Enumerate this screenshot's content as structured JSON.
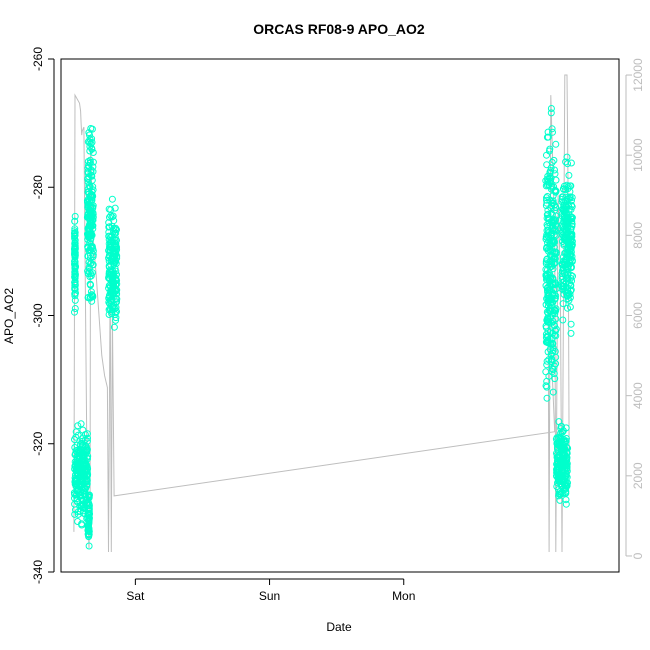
{
  "chart_data": {
    "type": "scatter",
    "title": "ORCAS RF08-9 APO_AO2",
    "xlabel": "Date",
    "ylabel": "APO_AO2",
    "x_ticks": [
      "Sat",
      "Sun",
      "Mon"
    ],
    "x_range_hours": [
      -13.3,
      86.5
    ],
    "ylim": [
      -340,
      -260
    ],
    "y_ticks": [
      -340,
      -320,
      -300,
      -280,
      -260
    ],
    "y2lim": [
      -400,
      12400
    ],
    "y2_ticks": [
      0,
      2000,
      4000,
      6000,
      8000,
      10000,
      12000
    ],
    "grid": false,
    "colors": {
      "points": "#00ffcc",
      "altitude_line": "#bebebe",
      "frame": "#000000",
      "right_axis": "#bdbdbd"
    },
    "series": [
      {
        "kind": "points",
        "clusters": [
          {
            "x_range": [
              -10.9,
              -10.7
            ],
            "y_range": [
              -302,
              -282
            ]
          },
          {
            "x_range": [
              -10.9,
              -8.5
            ],
            "y_range": [
              -334,
              -315
            ]
          },
          {
            "x_range": [
              -8.5,
              -8.2
            ],
            "y_range": [
              -337,
              -326
            ]
          },
          {
            "x_range": [
              -8.6,
              -7.5
            ],
            "y_range": [
              -302,
              -267
            ]
          },
          {
            "x_range": [
              -4.8,
              -3.3
            ],
            "y_range": [
              -307,
              -280
            ]
          },
          {
            "x_range": [
              73.4,
              75.3
            ],
            "y_range": [
              -321,
              -264
            ]
          },
          {
            "x_range": [
              75.3,
              77.3
            ],
            "y_range": [
              -332,
              -314
            ]
          },
          {
            "x_range": [
              76.3,
              78.2
            ],
            "y_range": [
              -305,
              -272
            ]
          }
        ]
      },
      {
        "kind": "line",
        "points": [
          [
            -11.0,
            600
          ],
          [
            -10.8,
            11500
          ],
          [
            -10.0,
            11300
          ],
          [
            -9.8,
            11100
          ],
          [
            -9.7,
            10800
          ],
          [
            -9.6,
            10500
          ],
          [
            -9.5,
            10600
          ],
          [
            -9.2,
            10700
          ],
          [
            -9.1,
            9000
          ],
          [
            -8.9,
            6000
          ],
          [
            -8.7,
            3000
          ],
          [
            -8.5,
            1000
          ],
          [
            -8.3,
            200
          ],
          [
            -8.1,
            1500
          ],
          [
            -8.0,
            10500
          ],
          [
            -7.8,
            9000
          ],
          [
            -7.6,
            8000
          ],
          [
            -7.0,
            7000
          ],
          [
            -6.0,
            5000
          ],
          [
            -5.5,
            4500
          ],
          [
            -5.0,
            4200
          ],
          [
            -4.8,
            100
          ],
          [
            -4.5,
            7000
          ],
          [
            -4.3,
            100
          ],
          [
            -4.1,
            6000
          ],
          [
            -3.8,
            1500
          ],
          [
            75.0,
            3100
          ],
          [
            73.8,
            7000
          ],
          [
            74.0,
            100
          ],
          [
            74.3,
            11500
          ],
          [
            74.6,
            10000
          ],
          [
            75.0,
            8000
          ],
          [
            75.2,
            100
          ],
          [
            75.6,
            9000
          ],
          [
            76.0,
            7000
          ],
          [
            76.3,
            100
          ],
          [
            76.8,
            12000
          ],
          [
            77.2,
            12000
          ],
          [
            77.4,
            9000
          ],
          [
            77.6,
            2000
          ]
        ]
      }
    ]
  }
}
